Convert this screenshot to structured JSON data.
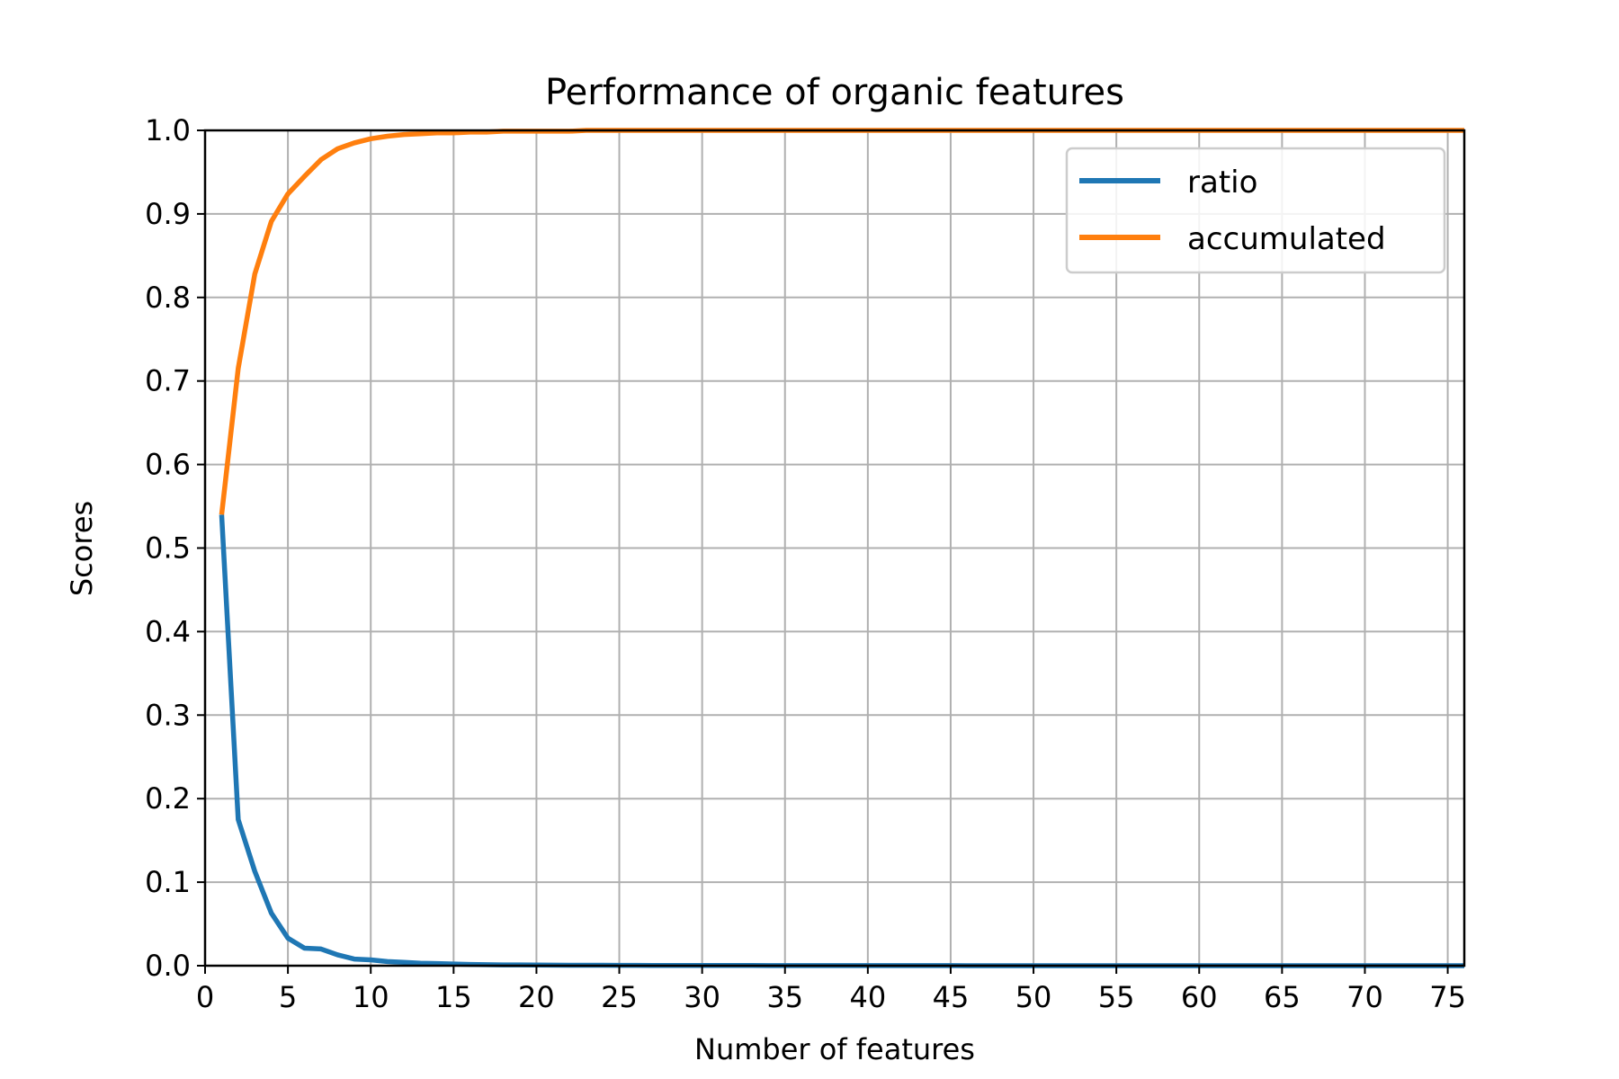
{
  "chart_data": {
    "type": "line",
    "title": "Performance of organic features",
    "xlabel": "Number of features",
    "ylabel": "Scores",
    "xlim": [
      0,
      76
    ],
    "ylim": [
      0.0,
      1.0
    ],
    "grid": true,
    "legend_position": "top-right",
    "x_ticks": [
      "0",
      "5",
      "10",
      "15",
      "20",
      "25",
      "30",
      "35",
      "40",
      "45",
      "50",
      "55",
      "60",
      "65",
      "70",
      "75"
    ],
    "y_ticks": [
      "0.0",
      "0.1",
      "0.2",
      "0.3",
      "0.4",
      "0.5",
      "0.6",
      "0.7",
      "0.8",
      "0.9",
      "1.0"
    ],
    "x": [
      1,
      2,
      3,
      4,
      5,
      6,
      7,
      8,
      9,
      10,
      11,
      12,
      13,
      14,
      15,
      16,
      17,
      18,
      19,
      20,
      21,
      22,
      23,
      24,
      25,
      26,
      27,
      28,
      29,
      30,
      31,
      32,
      33,
      34,
      35,
      36,
      37,
      38,
      39,
      40,
      41,
      42,
      43,
      44,
      45,
      46,
      47,
      48,
      49,
      50,
      51,
      52,
      53,
      54,
      55,
      56,
      57,
      58,
      59,
      60,
      61,
      62,
      63,
      64,
      65,
      66,
      67,
      68,
      69,
      70,
      71,
      72,
      73,
      74,
      75,
      76
    ],
    "series": [
      {
        "name": "ratio",
        "color": "#1f77b4",
        "values": [
          0.54,
          0.175,
          0.113,
          0.063,
          0.033,
          0.021,
          0.02,
          0.013,
          0.008,
          0.007,
          0.005,
          0.004,
          0.003,
          0.0025,
          0.002,
          0.0015,
          0.0012,
          0.001,
          0.001,
          0.0008,
          0.0007,
          0.0006,
          0.0005,
          0.0005,
          0.0004,
          0.0004,
          0.0003,
          0.0003,
          0.0003,
          0.0002,
          0.0002,
          0.0002,
          0.0002,
          0.0001,
          0.0001,
          0.0001,
          0.0001,
          0.0001,
          0.0001,
          0.0001,
          0.0001,
          0.0001,
          0.0001,
          0.0001,
          0.0001,
          0,
          0,
          0,
          0,
          0,
          0,
          0,
          0,
          0,
          0,
          0,
          0,
          0,
          0,
          0,
          0,
          0,
          0,
          0,
          0,
          0,
          0,
          0,
          0,
          0,
          0,
          0,
          0,
          0,
          0,
          0
        ]
      },
      {
        "name": "accumulated",
        "color": "#ff7f0e",
        "values": [
          0.54,
          0.715,
          0.828,
          0.891,
          0.924,
          0.945,
          0.965,
          0.978,
          0.985,
          0.99,
          0.993,
          0.995,
          0.996,
          0.997,
          0.997,
          0.998,
          0.998,
          0.999,
          0.999,
          0.999,
          0.999,
          0.999,
          1.0,
          1.0,
          1.0,
          1.0,
          1.0,
          1.0,
          1.0,
          1.0,
          1.0,
          1.0,
          1.0,
          1.0,
          1.0,
          1.0,
          1.0,
          1.0,
          1.0,
          1.0,
          1.0,
          1.0,
          1.0,
          1.0,
          1.0,
          1.0,
          1.0,
          1.0,
          1.0,
          1.0,
          1.0,
          1.0,
          1.0,
          1.0,
          1.0,
          1.0,
          1.0,
          1.0,
          1.0,
          1.0,
          1.0,
          1.0,
          1.0,
          1.0,
          1.0,
          1.0,
          1.0,
          1.0,
          1.0,
          1.0,
          1.0,
          1.0,
          1.0,
          1.0,
          1.0,
          1.0
        ]
      }
    ]
  }
}
